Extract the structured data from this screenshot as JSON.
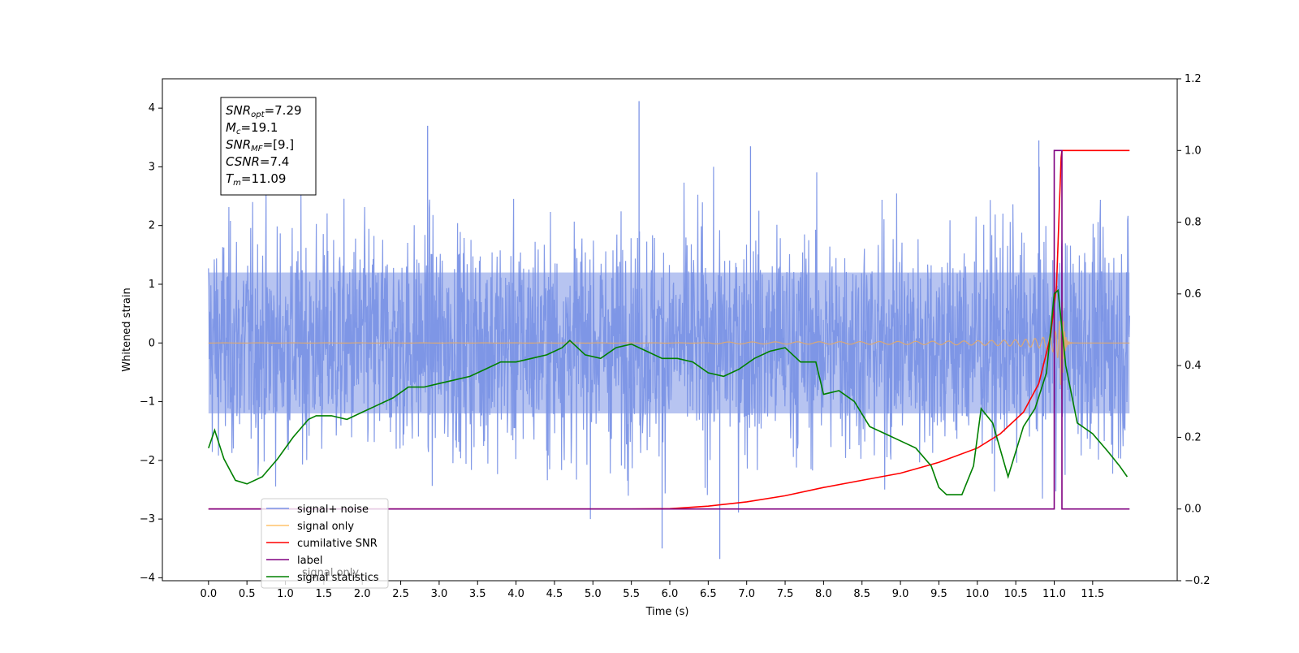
{
  "chart_data": {
    "type": "line",
    "xlabel": "Time (s)",
    "ylabel": "Whitened strain",
    "xlim": [
      -0.6,
      12.6
    ],
    "ylim": [
      -4.05,
      4.5
    ],
    "y2lim": [
      -0.2,
      1.2
    ],
    "x_ticks": [
      "0.0",
      "0.5",
      "1.0",
      "1.5",
      "2.0",
      "2.5",
      "3.0",
      "3.5",
      "4.0",
      "4.5",
      "5.0",
      "5.5",
      "6.0",
      "6.5",
      "7.0",
      "7.5",
      "8.0",
      "8.5",
      "9.0",
      "9.5",
      "10.0",
      "10.5",
      "11.0",
      "11.5"
    ],
    "y_ticks": [
      "4",
      "3",
      "2",
      "1",
      "0",
      "−1",
      "−2",
      "−3",
      "−4"
    ],
    "y2_ticks": [
      "1.2",
      "1.0",
      "0.8",
      "0.6",
      "0.4",
      "0.2",
      "0.0",
      "−0.2"
    ],
    "annotation": {
      "lines": [
        {
          "name": "SNR",
          "sub": "opt",
          "value": "=7.29"
        },
        {
          "name": "M",
          "sub": "c",
          "value": "=19.1"
        },
        {
          "name": "SNR",
          "sub": "MF",
          "value": "=[9.]"
        },
        {
          "name": "CSNR",
          "sub": "",
          "value": "=7.4"
        },
        {
          "name": "T",
          "sub": "m",
          "value": "=11.09"
        }
      ]
    },
    "legend": {
      "placement": "lower-left",
      "entries": [
        {
          "label": "signal+ noise",
          "color": "#7b93e6"
        },
        {
          "label": "signal only",
          "color": "#ffc46b"
        },
        {
          "label": "cumilative SNR",
          "color": "#ff0000"
        },
        {
          "label": "label",
          "color": "#800080"
        },
        {
          "label": "signal statistics",
          "color": "#008000"
        }
      ]
    },
    "hidden_legend_text": "signal only",
    "series": [
      {
        "name": "signal+ noise",
        "axis": "left",
        "color": "#7b93e6",
        "x_range": [
          0.0,
          11.98
        ],
        "peaks_x": [
          2.85,
          5.6,
          6.65,
          7.05,
          10.8,
          5.9
        ],
        "peaks_y": [
          3.7,
          4.12,
          -3.68,
          3.35,
          3.45,
          -3.5
        ]
      },
      {
        "name": "signal only",
        "axis": "left",
        "color": "#d9a877",
        "x_range": [
          0.0,
          11.98
        ],
        "merger_time": 11.09
      },
      {
        "name": "cumilative SNR",
        "axis": "right",
        "color": "#ff0000",
        "x": [
          0.0,
          5.5,
          6.0,
          6.5,
          7.0,
          7.5,
          8.0,
          8.5,
          9.0,
          9.5,
          10.0,
          10.3,
          10.6,
          10.8,
          10.95,
          11.03,
          11.09,
          11.1,
          11.2,
          11.98
        ],
        "y": [
          0.0,
          0.0,
          0.001,
          0.008,
          0.02,
          0.037,
          0.06,
          0.08,
          0.1,
          0.13,
          0.17,
          0.21,
          0.27,
          0.35,
          0.48,
          0.62,
          0.98,
          1.0,
          1.0,
          1.0
        ]
      },
      {
        "name": "label",
        "axis": "right",
        "color": "#800080",
        "x": [
          0.0,
          11.0,
          11.0,
          11.1,
          11.1,
          11.98
        ],
        "y": [
          0.0,
          0.0,
          1.0,
          1.0,
          0.0,
          0.0
        ]
      },
      {
        "name": "signal statistics",
        "axis": "right",
        "color": "#008000",
        "x": [
          0.0,
          0.08,
          0.2,
          0.35,
          0.5,
          0.7,
          0.9,
          1.1,
          1.3,
          1.4,
          1.6,
          1.8,
          2.0,
          2.2,
          2.4,
          2.6,
          2.8,
          3.0,
          3.2,
          3.4,
          3.6,
          3.8,
          4.0,
          4.2,
          4.4,
          4.6,
          4.7,
          4.9,
          5.1,
          5.3,
          5.5,
          5.7,
          5.9,
          6.1,
          6.3,
          6.5,
          6.7,
          6.9,
          7.1,
          7.3,
          7.5,
          7.7,
          7.9,
          8.0,
          8.2,
          8.4,
          8.6,
          8.8,
          9.0,
          9.2,
          9.4,
          9.5,
          9.6,
          9.8,
          9.95,
          10.05,
          10.2,
          10.4,
          10.6,
          10.75,
          10.9,
          11.0,
          11.05,
          11.15,
          11.3,
          11.5,
          11.7,
          11.85,
          11.95
        ],
        "y": [
          0.17,
          0.22,
          0.14,
          0.08,
          0.07,
          0.09,
          0.14,
          0.2,
          0.25,
          0.26,
          0.26,
          0.25,
          0.27,
          0.29,
          0.31,
          0.34,
          0.34,
          0.35,
          0.36,
          0.37,
          0.39,
          0.41,
          0.41,
          0.42,
          0.43,
          0.45,
          0.47,
          0.43,
          0.42,
          0.45,
          0.46,
          0.44,
          0.42,
          0.42,
          0.41,
          0.38,
          0.37,
          0.39,
          0.42,
          0.44,
          0.45,
          0.41,
          0.41,
          0.32,
          0.33,
          0.3,
          0.23,
          0.21,
          0.19,
          0.17,
          0.12,
          0.06,
          0.04,
          0.04,
          0.12,
          0.28,
          0.24,
          0.09,
          0.23,
          0.28,
          0.38,
          0.6,
          0.61,
          0.4,
          0.24,
          0.21,
          0.16,
          0.12,
          0.09
        ]
      }
    ]
  }
}
